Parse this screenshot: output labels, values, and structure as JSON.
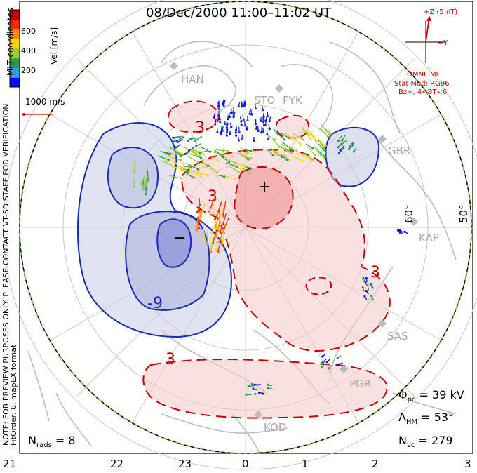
{
  "title": "08/Dec/2000 11:00–11:02 UT",
  "colorbar": {
    "label": "Vel [m/s]",
    "ticks": [
      "600",
      "400",
      "200"
    ],
    "colors": [
      "#0a0aff",
      "#2aa0e0",
      "#2f9a4a",
      "#9acd32",
      "#ffd400",
      "#ff8c00",
      "#ff2a00",
      "#c80000"
    ]
  },
  "left_side_text": {
    "coords": "MLT coordinates",
    "note": "NOTE: FOR PREVIEW PURPOSES ONLY. PLEASE CONTACT VT-SD STAFF FOR VERIFICATION.",
    "fit": "FitOrder: 8, mapEX format"
  },
  "scale_vector": {
    "label": "1000 m/s"
  },
  "imf": {
    "z_label": "+Z (5 nT)",
    "y_label": "+Y",
    "title": "OMNI IMF",
    "model_line1": "Stat Mod: RG96",
    "model_line2": "Bz+, 4<BT<6"
  },
  "stations": [
    "HAN",
    "STO",
    "PYK",
    "GBR",
    "KAP",
    "SAS",
    "PGR",
    "KOD"
  ],
  "latitude_labels": [
    "60°",
    "50°"
  ],
  "contour_labels": [
    "3",
    "3",
    "3",
    "-9",
    "3"
  ],
  "markers": {
    "max": "+",
    "min": "−"
  },
  "stats": {
    "phi_pc": "Φpc = 39 kV",
    "lambda_hm": "ΛHM = 53°",
    "n_vc": "Nvc = 279",
    "n_rads": "Nrads = 8"
  },
  "mlt_ticks": [
    "21",
    "22",
    "23",
    "0",
    "1",
    "2",
    "3"
  ]
}
